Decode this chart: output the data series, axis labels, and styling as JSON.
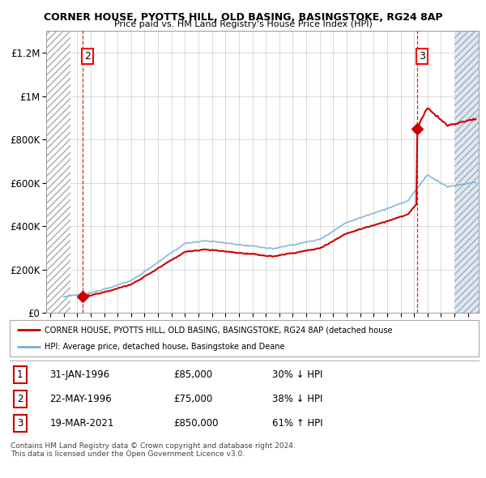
{
  "title1": "CORNER HOUSE, PYOTTS HILL, OLD BASING, BASINGSTOKE, RG24 8AP",
  "title2": "Price paid vs. HM Land Registry's House Price Index (HPI)",
  "ylabel_ticks": [
    "£0",
    "£200K",
    "£400K",
    "£600K",
    "£800K",
    "£1M",
    "£1.2M"
  ],
  "ytick_vals": [
    0,
    200000,
    400000,
    600000,
    800000,
    1000000,
    1200000
  ],
  "ylim": [
    0,
    1300000
  ],
  "xlim_start": 1993.7,
  "xlim_end": 2025.8,
  "hpi_color": "#7bafd4",
  "price_color": "#cc0000",
  "marker_color": "#cc0000",
  "sale_dates": [
    1996.08,
    1996.38,
    2021.21
  ],
  "sale_prices": [
    85000,
    75000,
    850000
  ],
  "chart_sale_indices": [
    1,
    2
  ],
  "chart_sale_labels": [
    "2",
    "3"
  ],
  "chart_sale_dates": [
    1996.38,
    2021.21
  ],
  "chart_sale_prices": [
    75000,
    850000
  ],
  "legend_line1": "CORNER HOUSE, PYOTTS HILL, OLD BASING, BASINGSTOKE, RG24 8AP (detached house",
  "legend_line2": "HPI: Average price, detached house, Basingstoke and Deane",
  "table_data": [
    [
      "1",
      "31-JAN-1996",
      "£85,000",
      "30% ↓ HPI"
    ],
    [
      "2",
      "22-MAY-1996",
      "£75,000",
      "38% ↓ HPI"
    ],
    [
      "3",
      "19-MAR-2021",
      "£850,000",
      "61% ↑ HPI"
    ]
  ],
  "footer": "Contains HM Land Registry data © Crown copyright and database right 2024.\nThis data is licensed under the Open Government Licence v3.0.",
  "bg_right_color": "#dce8f5",
  "grid_color": "#cccccc",
  "dashed_vline_color": "#cc0000",
  "hatch_end": 1995.5,
  "right_shade_start": 2024.0
}
